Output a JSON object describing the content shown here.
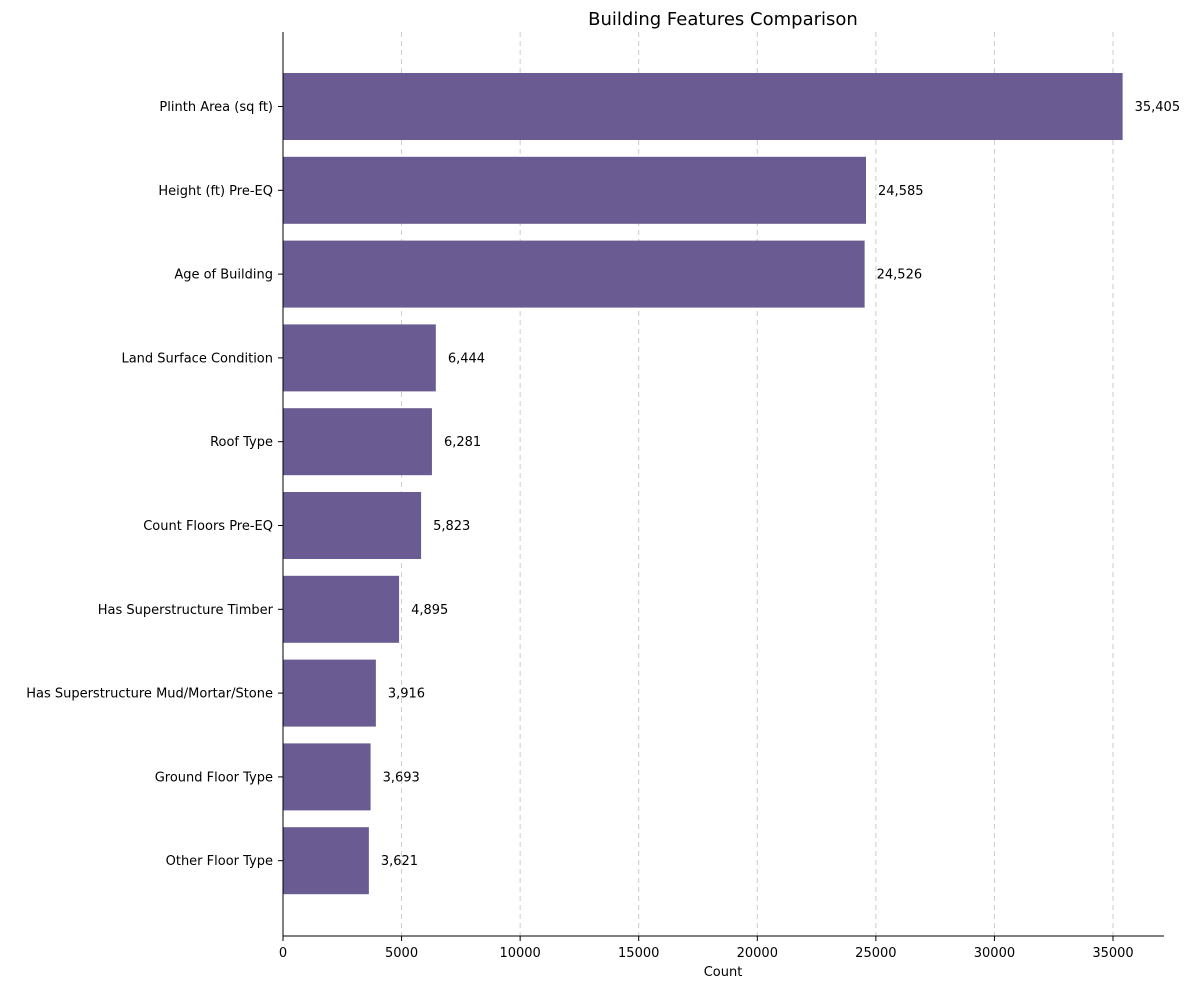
{
  "chart_data": {
    "type": "bar",
    "orientation": "horizontal",
    "title": "Building Features Comparison",
    "xlabel": "Count",
    "ylabel": "",
    "xlim": [
      0,
      37150
    ],
    "xticks": [
      0,
      5000,
      10000,
      15000,
      20000,
      25000,
      30000,
      35000
    ],
    "grid": "x-dashed",
    "bar_color": "#6a5c93",
    "categories": [
      "Plinth Area (sq ft)",
      "Height (ft) Pre-EQ",
      "Age of Building",
      "Land Surface Condition",
      "Roof Type",
      "Count Floors Pre-EQ",
      "Has Superstructure Timber",
      "Has Superstructure Mud/Mortar/Stone",
      "Ground Floor Type",
      "Other Floor Type"
    ],
    "values": [
      35405,
      24585,
      24526,
      6444,
      6281,
      5823,
      4895,
      3916,
      3693,
      3621
    ],
    "value_labels": [
      "35,405",
      "24,585",
      "24,526",
      "6,444",
      "6,281",
      "5,823",
      "4,895",
      "3,916",
      "3,693",
      "3,621"
    ]
  }
}
